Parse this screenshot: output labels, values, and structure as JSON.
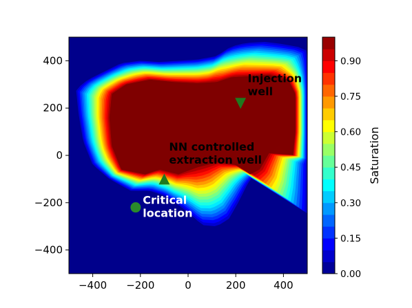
{
  "chart_data": {
    "type": "heatmap",
    "xlim": [
      -500,
      500
    ],
    "ylim": [
      -500,
      500
    ],
    "xticks": [
      -400,
      -200,
      0,
      200,
      400
    ],
    "yticks": [
      -400,
      -200,
      0,
      200,
      400
    ],
    "xtick_labels": [
      "−400",
      "−200",
      "0",
      "200",
      "400"
    ],
    "ytick_labels": [
      "−400",
      "−200",
      "0",
      "200",
      "400"
    ],
    "colorbar": {
      "label": "Saturation",
      "range": [
        0,
        1
      ],
      "ticks": [
        0.0,
        0.15,
        0.3,
        0.45,
        0.6,
        0.75,
        0.9
      ],
      "tick_labels": [
        "0.00",
        "0.15",
        "0.30",
        "0.45",
        "0.60",
        "0.75",
        "0.90"
      ],
      "colormap": "jet",
      "levels": 20
    },
    "plume_outline": [
      [
        -470,
        280
      ],
      [
        -420,
        320
      ],
      [
        -340,
        360
      ],
      [
        -280,
        390
      ],
      [
        -200,
        400
      ],
      [
        -120,
        395
      ],
      [
        -40,
        400
      ],
      [
        40,
        405
      ],
      [
        120,
        420
      ],
      [
        180,
        460
      ],
      [
        240,
        475
      ],
      [
        320,
        480
      ],
      [
        400,
        470
      ],
      [
        480,
        455
      ],
      [
        500,
        440
      ],
      [
        500,
        -250
      ],
      [
        470,
        -230
      ],
      [
        420,
        -180
      ],
      [
        360,
        -110
      ],
      [
        300,
        -50
      ],
      [
        250,
        -120
      ],
      [
        210,
        -200
      ],
      [
        170,
        -270
      ],
      [
        120,
        -300
      ],
      [
        60,
        -295
      ],
      [
        10,
        -250
      ],
      [
        -40,
        -210
      ],
      [
        -100,
        -170
      ],
      [
        -160,
        -150
      ],
      [
        -240,
        -150
      ],
      [
        -330,
        -100
      ],
      [
        -400,
        -40
      ],
      [
        -440,
        60
      ],
      [
        -460,
        180
      ]
    ],
    "core_outline": [
      [
        -320,
        260
      ],
      [
        -260,
        300
      ],
      [
        -160,
        320
      ],
      [
        -60,
        310
      ],
      [
        40,
        305
      ],
      [
        120,
        310
      ],
      [
        180,
        330
      ],
      [
        260,
        335
      ],
      [
        340,
        340
      ],
      [
        420,
        320
      ],
      [
        450,
        260
      ],
      [
        450,
        100
      ],
      [
        440,
        0
      ],
      [
        420,
        10
      ],
      [
        380,
        40
      ],
      [
        340,
        10
      ],
      [
        300,
        -60
      ],
      [
        260,
        -80
      ],
      [
        200,
        -40
      ],
      [
        120,
        -30
      ],
      [
        40,
        -50
      ],
      [
        -40,
        -80
      ],
      [
        -120,
        -60
      ],
      [
        -180,
        -80
      ],
      [
        -280,
        -60
      ],
      [
        -320,
        40
      ],
      [
        -330,
        160
      ]
    ],
    "annotations": [
      {
        "name": "Injection well",
        "text_lines": [
          "Injection",
          "well"
        ],
        "marker": "triangle-down",
        "x": 220,
        "y": 220,
        "text_x": 250,
        "text_y": 310,
        "color": "#ffffff"
      },
      {
        "name": "NN controlled extraction well",
        "text_lines": [
          "NN controlled",
          "extraction well"
        ],
        "marker": "triangle-up",
        "x": -100,
        "y": -100,
        "text_x": -80,
        "text_y": 20,
        "color": "#ffffff"
      },
      {
        "name": "Critical location",
        "text_lines": [
          "Critical",
          "location"
        ],
        "marker": "circle",
        "x": -220,
        "y": -220,
        "text_x": -190,
        "text_y": -205,
        "color": "#ffffff"
      }
    ],
    "colors": {
      "well_marker": "#1f7a1f",
      "critical_marker": "#2a8a2a",
      "background_low": "#00008b",
      "label_on_high": "#000000",
      "label_on_low": "#ffffff"
    }
  }
}
